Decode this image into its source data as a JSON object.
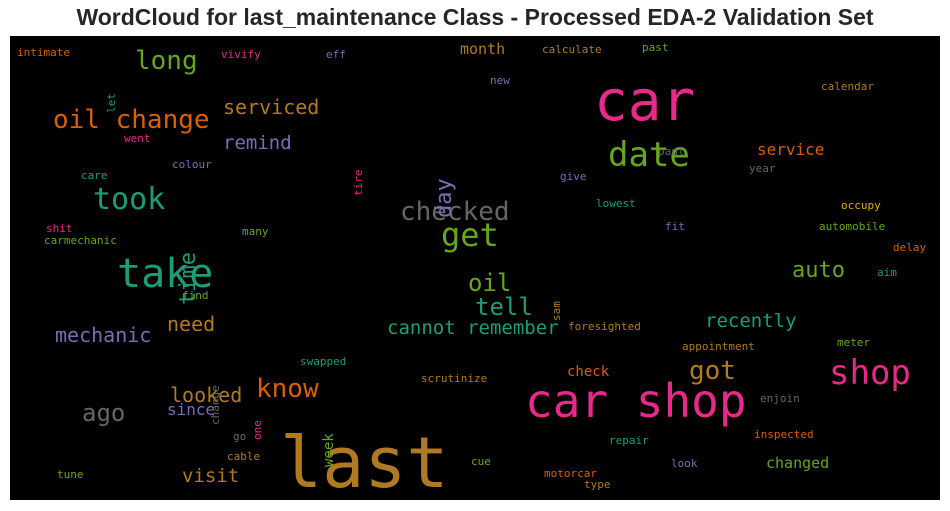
{
  "title": "WordCloud for last_maintenance Class - Processed EDA-2 Validation Set",
  "chart_data": {
    "type": "wordcloud",
    "background": "#000000",
    "words": [
      {
        "text": "last",
        "color": "#b07a22"
      },
      {
        "text": "car shop",
        "color": "#e7298a"
      },
      {
        "text": "car",
        "color": "#e7298a"
      },
      {
        "text": "take",
        "color": "#1b9e77"
      },
      {
        "text": "date",
        "color": "#66a61e"
      },
      {
        "text": "shop",
        "color": "#e7298a"
      },
      {
        "text": "get",
        "color": "#66a61e"
      },
      {
        "text": "took",
        "color": "#1b9e77"
      },
      {
        "text": "checked",
        "color": "#666666"
      },
      {
        "text": "oil change",
        "color": "#d95f02"
      },
      {
        "text": "know",
        "color": "#d95f02"
      },
      {
        "text": "long",
        "color": "#66a61e"
      },
      {
        "text": "got",
        "color": "#b07a22"
      },
      {
        "text": "tell",
        "color": "#1b9e77"
      },
      {
        "text": "oil",
        "color": "#66a61e"
      },
      {
        "text": "ago",
        "color": "#666666"
      },
      {
        "text": "auto",
        "color": "#66a61e"
      },
      {
        "text": "mechanic",
        "color": "#7570b3"
      },
      {
        "text": "day",
        "color": "#7570b3"
      },
      {
        "text": "time",
        "color": "#1b9e77"
      },
      {
        "text": "need",
        "color": "#b07a22"
      },
      {
        "text": "serviced",
        "color": "#b07a22"
      },
      {
        "text": "looked",
        "color": "#b07a22"
      },
      {
        "text": "cannot remember",
        "color": "#1b9e77"
      },
      {
        "text": "recently",
        "color": "#1b9e77"
      },
      {
        "text": "remind",
        "color": "#7570b3"
      },
      {
        "text": "visit",
        "color": "#b07a22"
      },
      {
        "text": "since",
        "color": "#7570b3"
      },
      {
        "text": "service",
        "color": "#d95f02"
      },
      {
        "text": "changed",
        "color": "#66a61e"
      },
      {
        "text": "month",
        "color": "#b07a22"
      },
      {
        "text": "week",
        "color": "#66a61e"
      },
      {
        "text": "check",
        "color": "#d95f02"
      },
      {
        "text": "calendar",
        "color": "#b07a22"
      },
      {
        "text": "calculate",
        "color": "#b07a22"
      },
      {
        "text": "past",
        "color": "#66a61e"
      },
      {
        "text": "intimate",
        "color": "#d95f02"
      },
      {
        "text": "vivify",
        "color": "#e7298a"
      },
      {
        "text": "eff",
        "color": "#7570b3"
      },
      {
        "text": "new",
        "color": "#7570b3"
      },
      {
        "text": "let",
        "color": "#1b9e77"
      },
      {
        "text": "went",
        "color": "#e7298a"
      },
      {
        "text": "colour",
        "color": "#7570b3"
      },
      {
        "text": "tire",
        "color": "#e7298a"
      },
      {
        "text": "paul",
        "color": "#666666"
      },
      {
        "text": "care",
        "color": "#1b9e77"
      },
      {
        "text": "give",
        "color": "#7570b3"
      },
      {
        "text": "year",
        "color": "#666666"
      },
      {
        "text": "lowest",
        "color": "#1b9e77"
      },
      {
        "text": "occupy",
        "color": "#e6ab02"
      },
      {
        "text": "shit",
        "color": "#e7298a"
      },
      {
        "text": "carmechanic",
        "color": "#66a61e"
      },
      {
        "text": "many",
        "color": "#66a61e"
      },
      {
        "text": "fit",
        "color": "#7570b3"
      },
      {
        "text": "automobile",
        "color": "#66a61e"
      },
      {
        "text": "delay",
        "color": "#d95f02"
      },
      {
        "text": "aim",
        "color": "#1b9e77"
      },
      {
        "text": "find",
        "color": "#66a61e"
      },
      {
        "text": "sam",
        "color": "#b07a22"
      },
      {
        "text": "foresighted",
        "color": "#b07a22"
      },
      {
        "text": "meter",
        "color": "#66a61e"
      },
      {
        "text": "appointment",
        "color": "#b07a22"
      },
      {
        "text": "change",
        "color": "#666666"
      },
      {
        "text": "swapped",
        "color": "#1b9e77"
      },
      {
        "text": "scrutinize",
        "color": "#b07a22"
      },
      {
        "text": "enjoin",
        "color": "#666666"
      },
      {
        "text": "one",
        "color": "#e7298a"
      },
      {
        "text": "go",
        "color": "#666666"
      },
      {
        "text": "repair",
        "color": "#1b9e77"
      },
      {
        "text": "inspected",
        "color": "#d95f02"
      },
      {
        "text": "cable",
        "color": "#b07a22"
      },
      {
        "text": "tune",
        "color": "#66a61e"
      },
      {
        "text": "cue",
        "color": "#66a61e"
      },
      {
        "text": "look",
        "color": "#7570b3"
      },
      {
        "text": "motorcar",
        "color": "#d95f02"
      },
      {
        "text": "type",
        "color": "#b07a22"
      }
    ]
  }
}
